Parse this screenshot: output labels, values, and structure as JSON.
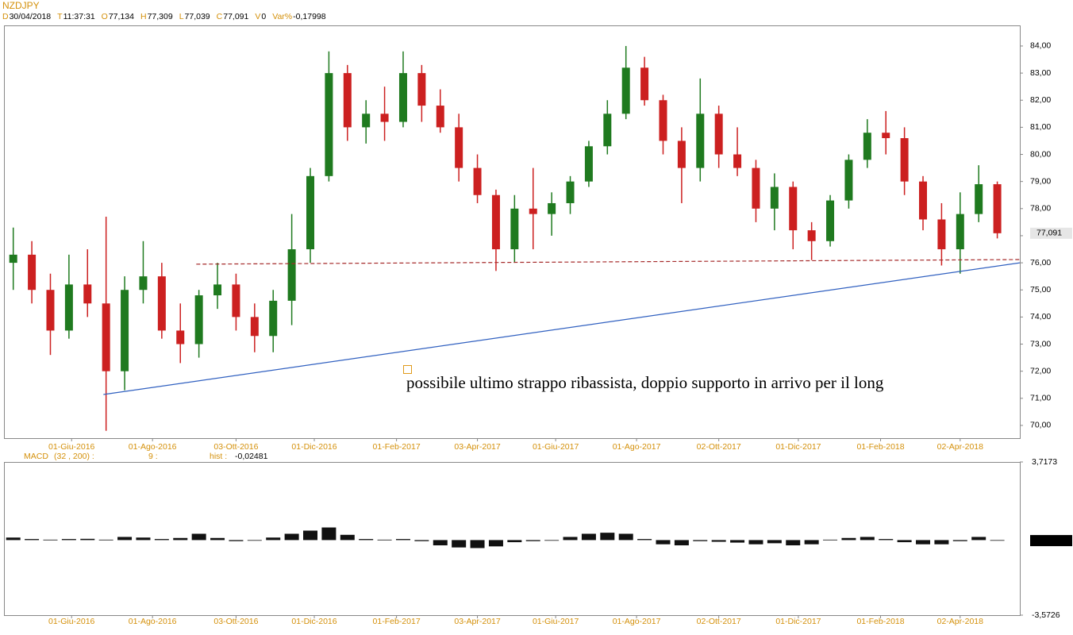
{
  "header": {
    "items": [
      {
        "key": "D",
        "value": "30/04/2018"
      },
      {
        "key": "T",
        "value": "11:37:31"
      },
      {
        "key": "O",
        "value": "77,134"
      },
      {
        "key": "H",
        "value": "77,309"
      },
      {
        "key": "L",
        "value": "77,039"
      },
      {
        "key": "C",
        "value": "77,091"
      },
      {
        "key": "V",
        "value": "0"
      },
      {
        "key": "Var%",
        "value": "-0,17998"
      }
    ]
  },
  "chart_data": [
    {
      "type": "candlestick",
      "title": "NZDJPY",
      "x": [
        "2016-04-18",
        "2016-05-02",
        "2016-05-16",
        "2016-05-30",
        "2016-06-13",
        "2016-06-27",
        "2016-07-11",
        "2016-07-25",
        "2016-08-08",
        "2016-08-22",
        "2016-09-05",
        "2016-09-19",
        "2016-10-03",
        "2016-10-17",
        "2016-10-31",
        "2016-11-14",
        "2016-11-28",
        "2016-12-12",
        "2016-12-26",
        "2017-01-09",
        "2017-01-23",
        "2017-02-06",
        "2017-02-20",
        "2017-03-06",
        "2017-03-20",
        "2017-04-03",
        "2017-04-17",
        "2017-05-01",
        "2017-05-15",
        "2017-05-29",
        "2017-06-12",
        "2017-06-26",
        "2017-07-10",
        "2017-07-24",
        "2017-08-07",
        "2017-08-21",
        "2017-09-04",
        "2017-09-18",
        "2017-10-02",
        "2017-10-16",
        "2017-10-30",
        "2017-11-13",
        "2017-11-27",
        "2017-12-11",
        "2017-12-25",
        "2018-01-08",
        "2018-01-22",
        "2018-02-05",
        "2018-02-19",
        "2018-03-05",
        "2018-03-19",
        "2018-04-02",
        "2018-04-16",
        "2018-04-30"
      ],
      "open": [
        76.0,
        76.3,
        75.0,
        73.5,
        75.2,
        74.5,
        72.0,
        75.0,
        75.5,
        73.5,
        73.0,
        74.8,
        75.2,
        74.0,
        73.3,
        74.6,
        76.5,
        79.2,
        83.0,
        81.0,
        81.5,
        81.2,
        83.0,
        81.8,
        81.0,
        79.5,
        78.5,
        76.5,
        78.0,
        77.8,
        78.2,
        79.0,
        80.3,
        81.5,
        83.2,
        82.0,
        80.5,
        79.5,
        81.5,
        80.0,
        79.5,
        78.0,
        78.8,
        77.2,
        76.8,
        78.3,
        79.8,
        80.8,
        80.6,
        79.0,
        77.6,
        76.5,
        77.8,
        78.9
      ],
      "high": [
        77.3,
        76.8,
        75.6,
        76.3,
        76.5,
        77.7,
        75.5,
        76.8,
        76.0,
        74.5,
        75.0,
        76.0,
        75.6,
        74.5,
        75.0,
        77.8,
        79.5,
        83.8,
        83.3,
        82.0,
        82.5,
        83.8,
        83.3,
        82.4,
        81.5,
        80.0,
        78.7,
        78.5,
        79.5,
        78.6,
        79.2,
        80.5,
        82.0,
        84.0,
        83.6,
        82.2,
        81.0,
        82.8,
        81.8,
        81.0,
        79.8,
        79.3,
        79.0,
        77.5,
        78.5,
        80.0,
        81.3,
        81.6,
        81.0,
        79.2,
        78.2,
        78.6,
        79.6,
        79.0
      ],
      "low": [
        75.0,
        74.5,
        72.6,
        73.2,
        74.0,
        69.8,
        71.3,
        74.5,
        73.2,
        72.3,
        72.5,
        74.3,
        73.5,
        72.7,
        72.7,
        73.7,
        76.0,
        79.0,
        80.5,
        80.4,
        80.5,
        81.0,
        81.2,
        80.8,
        79.0,
        78.2,
        75.7,
        76.0,
        76.5,
        77.0,
        77.8,
        78.8,
        80.0,
        81.3,
        81.8,
        80.0,
        78.2,
        79.0,
        79.5,
        79.2,
        77.5,
        77.2,
        76.5,
        76.1,
        76.6,
        78.0,
        79.5,
        80.0,
        78.5,
        77.2,
        75.9,
        75.6,
        77.5,
        76.9
      ],
      "close": [
        76.3,
        75.0,
        73.5,
        75.2,
        74.5,
        72.0,
        75.0,
        75.5,
        73.5,
        73.0,
        74.8,
        75.2,
        74.0,
        73.3,
        74.6,
        76.5,
        79.2,
        83.0,
        81.0,
        81.5,
        81.2,
        83.0,
        81.8,
        81.0,
        79.5,
        78.5,
        76.5,
        78.0,
        77.8,
        78.2,
        79.0,
        80.3,
        81.5,
        83.2,
        82.0,
        80.5,
        79.5,
        81.5,
        80.0,
        79.5,
        78.0,
        78.8,
        77.2,
        76.8,
        78.3,
        79.8,
        80.8,
        80.6,
        79.0,
        77.6,
        76.5,
        77.8,
        78.9,
        77.091
      ],
      "up_color": "#1f7a1f",
      "down_color": "#cc2020",
      "xlim": [
        "2016-04-11",
        "2018-05-17"
      ],
      "xticks": [
        {
          "value": "2016-06-01",
          "label": "01-Giu-2016"
        },
        {
          "value": "2016-08-01",
          "label": "01-Ago-2016"
        },
        {
          "value": "2016-10-03",
          "label": "03-Ott-2016"
        },
        {
          "value": "2016-12-01",
          "label": "01-Dic-2016"
        },
        {
          "value": "2017-02-01",
          "label": "01-Feb-2017"
        },
        {
          "value": "2017-04-03",
          "label": "03-Apr-2017"
        },
        {
          "value": "2017-06-01",
          "label": "01-Giu-2017"
        },
        {
          "value": "2017-08-01",
          "label": "01-Ago-2017"
        },
        {
          "value": "2017-10-02",
          "label": "02-Ott-2017"
        },
        {
          "value": "2017-12-01",
          "label": "01-Dic-2017"
        },
        {
          "value": "2018-02-01",
          "label": "01-Feb-2018"
        },
        {
          "value": "2018-04-02",
          "label": "02-Apr-2018"
        }
      ],
      "ylim": [
        69.53,
        84.76
      ],
      "yticks": [
        {
          "value": 70,
          "label": "70,00"
        },
        {
          "value": 71,
          "label": "71,00"
        },
        {
          "value": 72,
          "label": "72,00"
        },
        {
          "value": 73,
          "label": "73,00"
        },
        {
          "value": 74,
          "label": "74,00"
        },
        {
          "value": 75,
          "label": "75,00"
        },
        {
          "value": 76,
          "label": "76,00"
        },
        {
          "value": 77,
          "label": "77,00"
        },
        {
          "value": 78,
          "label": "78,00"
        },
        {
          "value": 79,
          "label": "79,00"
        },
        {
          "value": 80,
          "label": "80,00"
        },
        {
          "value": 81,
          "label": "81,00"
        },
        {
          "value": 82,
          "label": "82,00"
        },
        {
          "value": 83,
          "label": "83,00"
        },
        {
          "value": 84,
          "label": "84,00"
        }
      ],
      "current": {
        "value": 77.091,
        "label": "77,091"
      },
      "lines": [
        {
          "color": "#a52a2a",
          "dashed": true,
          "x": [
            "2016-09-03",
            "2018-05-17"
          ],
          "y": [
            75.95,
            76.12
          ]
        },
        {
          "color": "#3060c0",
          "dashed": false,
          "x": [
            "2016-06-25",
            "2018-05-17"
          ],
          "y": [
            71.14,
            76.0
          ]
        }
      ],
      "annotation": "possibile ultimo strappo ribassista, doppio supporto in arrivo per il long"
    },
    {
      "type": "bar",
      "title": "MACD",
      "params": [
        "(32 , 200) :",
        "9 :"
      ],
      "hist_label": "hist :",
      "x": [
        "2016-04-18",
        "2016-05-02",
        "2016-05-16",
        "2016-05-30",
        "2016-06-13",
        "2016-06-27",
        "2016-07-11",
        "2016-07-25",
        "2016-08-08",
        "2016-08-22",
        "2016-09-05",
        "2016-09-19",
        "2016-10-03",
        "2016-10-17",
        "2016-10-31",
        "2016-11-14",
        "2016-11-28",
        "2016-12-12",
        "2016-12-26",
        "2017-01-09",
        "2017-01-23",
        "2017-02-06",
        "2017-02-20",
        "2017-03-06",
        "2017-03-20",
        "2017-04-03",
        "2017-04-17",
        "2017-05-01",
        "2017-05-15",
        "2017-05-29",
        "2017-06-12",
        "2017-06-26",
        "2017-07-10",
        "2017-07-24",
        "2017-08-07",
        "2017-08-21",
        "2017-09-04",
        "2017-09-18",
        "2017-10-02",
        "2017-10-16",
        "2017-10-30",
        "2017-11-13",
        "2017-11-27",
        "2017-12-11",
        "2017-12-25",
        "2018-01-08",
        "2018-01-22",
        "2018-02-05",
        "2018-02-19",
        "2018-03-05",
        "2018-03-19",
        "2018-04-02",
        "2018-04-16",
        "2018-04-30"
      ],
      "values": [
        0.12,
        0.05,
        0.02,
        0.05,
        0.06,
        0.02,
        0.15,
        0.12,
        0.05,
        0.1,
        0.3,
        0.1,
        -0.05,
        0.0,
        0.12,
        0.3,
        0.45,
        0.6,
        0.25,
        0.05,
        0.02,
        0.05,
        -0.05,
        -0.25,
        -0.35,
        -0.38,
        -0.3,
        -0.1,
        -0.05,
        0.0,
        0.15,
        0.3,
        0.35,
        0.3,
        0.05,
        -0.2,
        -0.25,
        -0.05,
        -0.08,
        -0.12,
        -0.2,
        -0.15,
        -0.25,
        -0.2,
        0.02,
        0.1,
        0.15,
        0.05,
        -0.1,
        -0.2,
        -0.2,
        -0.05,
        0.15,
        -0.02481
      ],
      "color": "#111111",
      "xlim": [
        "2016-04-11",
        "2018-05-17"
      ],
      "xticks": [
        {
          "value": "2016-06-01",
          "label": "01-Giu-2016"
        },
        {
          "value": "2016-08-01",
          "label": "01-Ago-2016"
        },
        {
          "value": "2016-10-03",
          "label": "03-Ott-2016"
        },
        {
          "value": "2016-12-01",
          "label": "01-Dic-2016"
        },
        {
          "value": "2017-02-01",
          "label": "01-Feb-2017"
        },
        {
          "value": "2017-04-03",
          "label": "03-Apr-2017"
        },
        {
          "value": "2017-06-01",
          "label": "01-Giu-2017"
        },
        {
          "value": "2017-08-01",
          "label": "01-Ago-2017"
        },
        {
          "value": "2017-10-02",
          "label": "02-Ott-2017"
        },
        {
          "value": "2017-12-01",
          "label": "01-Dic-2017"
        },
        {
          "value": "2018-02-01",
          "label": "01-Feb-2018"
        },
        {
          "value": "2018-04-02",
          "label": "02-Apr-2018"
        }
      ],
      "ylim": [
        -3.5726,
        3.7173
      ],
      "yticks": [
        {
          "value": -3.5726,
          "label": "-3,5726"
        },
        {
          "value": 3.7173,
          "label": "3,7173"
        }
      ],
      "current": {
        "value": -0.02481,
        "label": "-0,02481"
      }
    }
  ]
}
